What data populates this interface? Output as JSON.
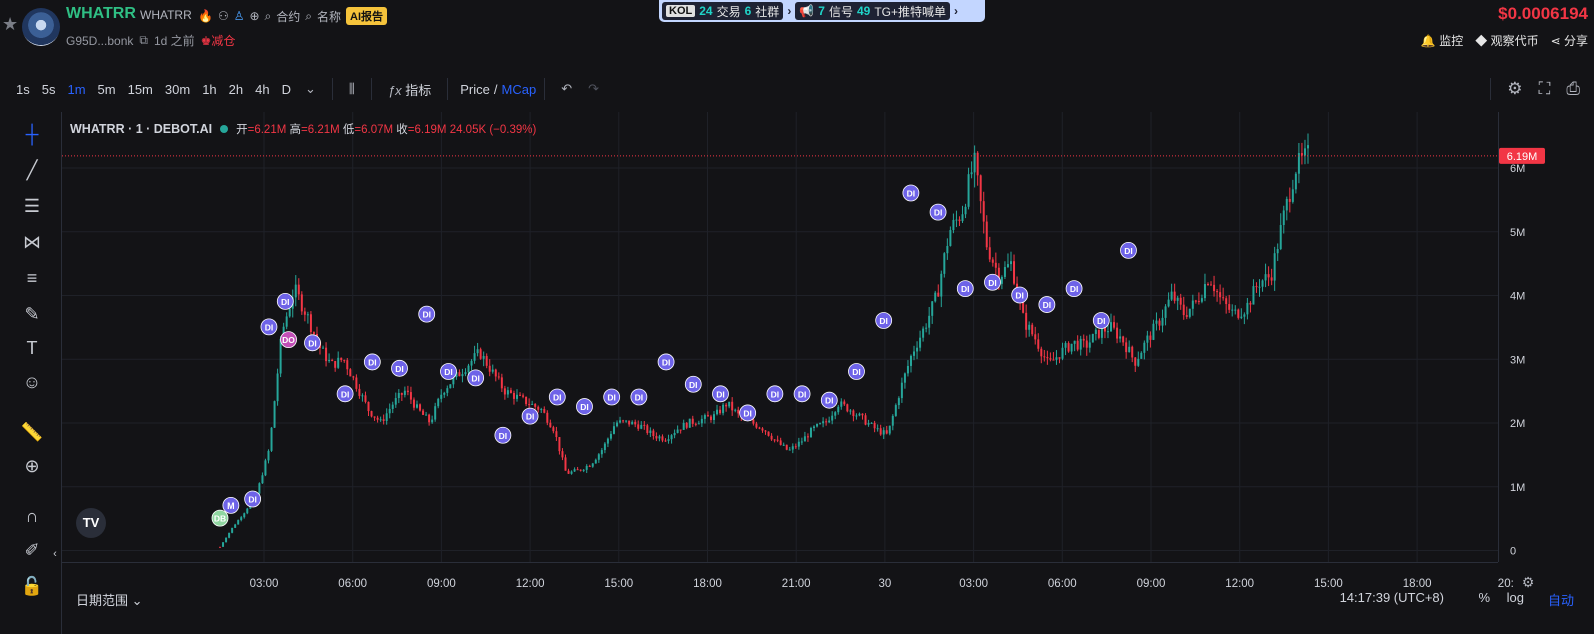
{
  "header": {
    "symbol": "WHATRR",
    "symbol_sub": "WHATRR",
    "contract_label": "合约",
    "name_label": "名称",
    "ai_report": "AI报告",
    "address": "G95D...bonk",
    "age": "1d 之前",
    "reduce_label": "减仓",
    "price": "$0.0006194",
    "monitor_label": "监控",
    "watch_label": "观察代币",
    "share_label": "分享"
  },
  "kolbar": {
    "kol_badge": "KOL",
    "kol_trades_count": "24",
    "kol_trades_label": "交易",
    "community_count": "6",
    "community_label": "社群",
    "signal_count": "7",
    "signal_label": "信号",
    "tg_count": "49",
    "tg_label": "TG+推特喊单"
  },
  "toolbar": {
    "timeframes": [
      "1s",
      "5s",
      "1m",
      "5m",
      "15m",
      "30m",
      "1h",
      "2h",
      "4h",
      "D"
    ],
    "active_timeframe": "1m",
    "indicators_label": "指标",
    "price_label": "Price",
    "slash": "/",
    "mcap_label": "MCap"
  },
  "legend": {
    "title": "WHATRR · 1 · DEBOT.AI",
    "open_label": "开",
    "open": "6.21M",
    "high_label": "高",
    "high": "6.21M",
    "low_label": "低",
    "low": "6.07M",
    "close_label": "收",
    "close": "6.19M",
    "change": "24.05K (−0.39%)"
  },
  "bottom": {
    "date_range": "日期范围",
    "clock": "14:17:39 (UTC+8)",
    "pct": "%",
    "log": "log",
    "auto": "自动"
  },
  "colors": {
    "up": "#26a69a",
    "down": "#f23645",
    "marker": "#6e63e8",
    "marker_do": "#c24fb7",
    "marker_dd": "#8fd6a0",
    "grid": "#1f2128"
  },
  "chart_data": {
    "type": "candlestick",
    "x_ticks": [
      "03:00",
      "06:00",
      "09:00",
      "12:00",
      "15:00",
      "18:00",
      "21:00",
      "30",
      "03:00",
      "06:00",
      "09:00",
      "12:00",
      "15:00",
      "18:00",
      "20:"
    ],
    "y_ticks": [
      "0",
      "1M",
      "2M",
      "3M",
      "4M",
      "5M",
      "6M"
    ],
    "ylim": [
      0,
      6.4
    ],
    "y_unit": "M",
    "last_price_label": "6.19M",
    "last_price": 6.19,
    "series": [
      {
        "values": [
          0.05,
          0.35,
          0.6,
          0.9,
          1.6,
          3.4,
          4.1,
          3.7,
          3.2,
          2.9,
          3.0,
          2.6,
          2.2,
          2.0,
          2.3,
          2.5,
          2.2,
          2.0,
          2.5,
          2.7,
          2.9,
          3.1,
          2.8,
          2.5,
          2.4,
          2.3,
          2.2,
          1.9,
          1.2,
          1.25,
          1.35,
          1.6,
          2.0,
          2.0,
          1.95,
          1.8,
          1.75,
          1.9,
          2.0,
          2.05,
          2.1,
          2.3,
          2.1,
          2.0,
          1.9,
          1.7,
          1.55,
          1.7,
          1.9,
          2.0,
          2.3,
          2.2,
          2.05,
          1.9,
          1.8,
          2.5,
          3.1,
          3.5,
          4.0,
          5.0,
          5.3,
          6.1,
          4.8,
          4.3,
          4.5,
          3.6,
          3.3,
          2.9,
          3.1,
          3.25,
          3.2,
          3.4,
          3.5,
          3.3,
          2.95,
          3.3,
          3.6,
          4.0,
          3.7,
          3.9,
          4.3,
          3.9,
          3.7,
          3.8,
          4.2,
          4.3,
          5.2,
          6.0,
          6.19
        ]
      }
    ],
    "markers": [
      {
        "label": "DI",
        "x": 0.03,
        "y": 0.8
      },
      {
        "label": "M",
        "x": 0.01,
        "y": 0.7
      },
      {
        "label": "DB",
        "x": 0.0,
        "y": 0.5
      },
      {
        "label": "DI",
        "x": 0.045,
        "y": 3.5
      },
      {
        "label": "DI",
        "x": 0.06,
        "y": 3.9
      },
      {
        "label": "DO",
        "x": 0.063,
        "y": 3.3
      },
      {
        "label": "DI",
        "x": 0.085,
        "y": 3.25
      },
      {
        "label": "DI",
        "x": 0.115,
        "y": 2.45
      },
      {
        "label": "DI",
        "x": 0.14,
        "y": 2.95
      },
      {
        "label": "DI",
        "x": 0.165,
        "y": 2.85
      },
      {
        "label": "DI",
        "x": 0.19,
        "y": 3.7
      },
      {
        "label": "DI",
        "x": 0.21,
        "y": 2.8
      },
      {
        "label": "DI",
        "x": 0.235,
        "y": 2.7
      },
      {
        "label": "DI",
        "x": 0.26,
        "y": 1.8
      },
      {
        "label": "DI",
        "x": 0.285,
        "y": 2.1
      },
      {
        "label": "DI",
        "x": 0.31,
        "y": 2.4
      },
      {
        "label": "DI",
        "x": 0.335,
        "y": 2.25
      },
      {
        "label": "DI",
        "x": 0.36,
        "y": 2.4
      },
      {
        "label": "DI",
        "x": 0.385,
        "y": 2.4
      },
      {
        "label": "DI",
        "x": 0.41,
        "y": 2.95
      },
      {
        "label": "DI",
        "x": 0.435,
        "y": 2.6
      },
      {
        "label": "DI",
        "x": 0.46,
        "y": 2.45
      },
      {
        "label": "DI",
        "x": 0.485,
        "y": 2.15
      },
      {
        "label": "DI",
        "x": 0.51,
        "y": 2.45
      },
      {
        "label": "DI",
        "x": 0.535,
        "y": 2.45
      },
      {
        "label": "DI",
        "x": 0.56,
        "y": 2.35
      },
      {
        "label": "DI",
        "x": 0.585,
        "y": 2.8
      },
      {
        "label": "DI",
        "x": 0.61,
        "y": 3.6
      },
      {
        "label": "DI",
        "x": 0.635,
        "y": 5.6
      },
      {
        "label": "DI",
        "x": 0.66,
        "y": 5.3
      },
      {
        "label": "DI",
        "x": 0.685,
        "y": 4.1
      },
      {
        "label": "DI",
        "x": 0.71,
        "y": 4.2
      },
      {
        "label": "DI",
        "x": 0.735,
        "y": 4.0
      },
      {
        "label": "DI",
        "x": 0.76,
        "y": 3.85
      },
      {
        "label": "DI",
        "x": 0.785,
        "y": 4.1
      },
      {
        "label": "DI",
        "x": 0.81,
        "y": 3.6
      },
      {
        "label": "DI",
        "x": 0.835,
        "y": 4.7
      }
    ]
  }
}
